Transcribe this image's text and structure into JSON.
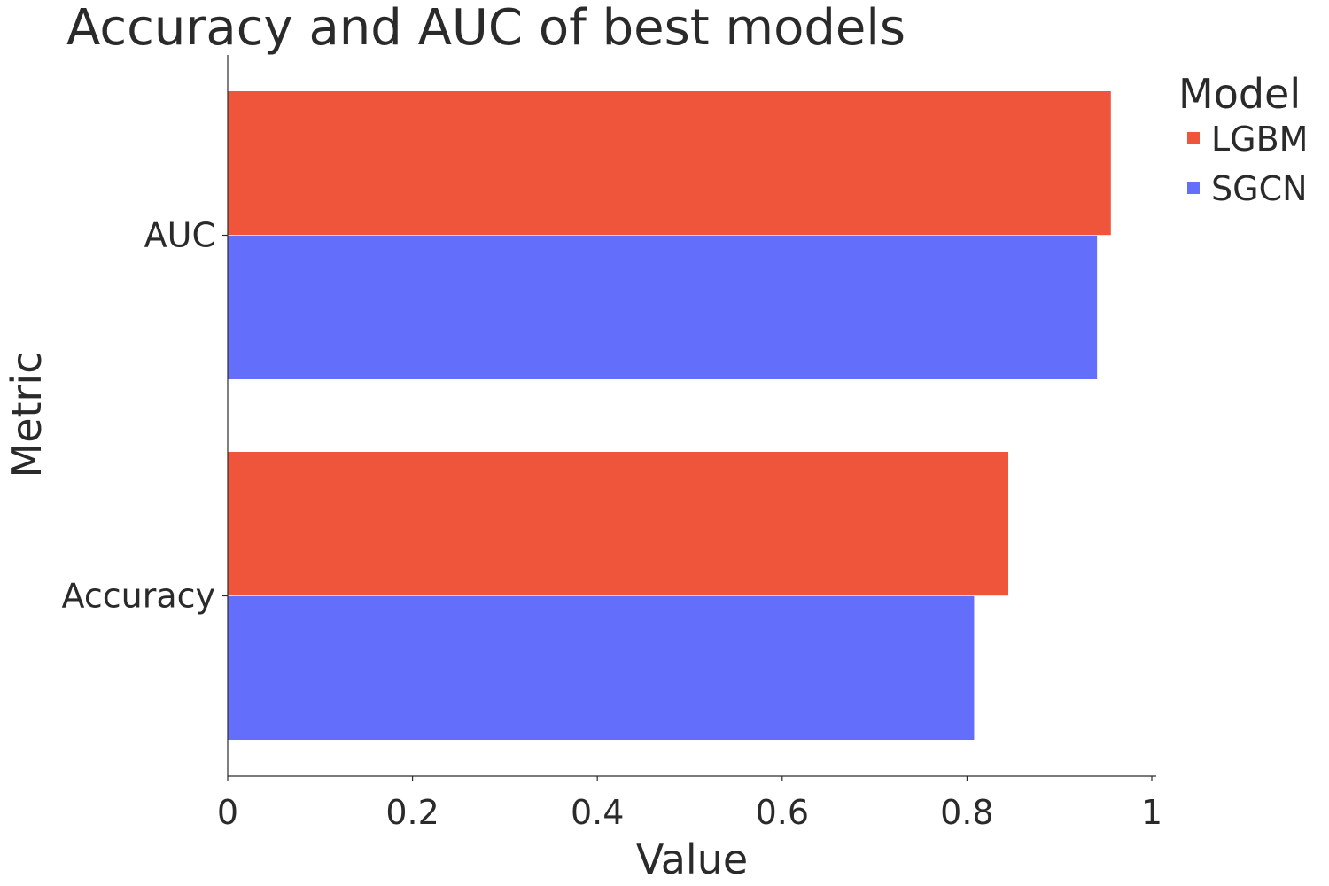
{
  "chart_data": {
    "type": "bar",
    "orientation": "horizontal",
    "title": "Accuracy and AUC of best models",
    "xlabel": "Value",
    "ylabel": "Metric",
    "categories": [
      "AUC",
      "Accuracy"
    ],
    "series": [
      {
        "name": "LGBM",
        "color": "#ef553b",
        "values": [
          0.956,
          0.845
        ]
      },
      {
        "name": "SGCN",
        "color": "#636efa",
        "values": [
          0.941,
          0.808
        ]
      }
    ],
    "xlim": [
      0,
      1
    ],
    "xticks": [
      0,
      0.2,
      0.4,
      0.6,
      0.8,
      1
    ],
    "xtick_labels": [
      "0",
      "0.2",
      "0.4",
      "0.6",
      "0.8",
      "1"
    ],
    "grid": false,
    "legend": {
      "title": "Model",
      "placement": "top-right outside"
    }
  }
}
